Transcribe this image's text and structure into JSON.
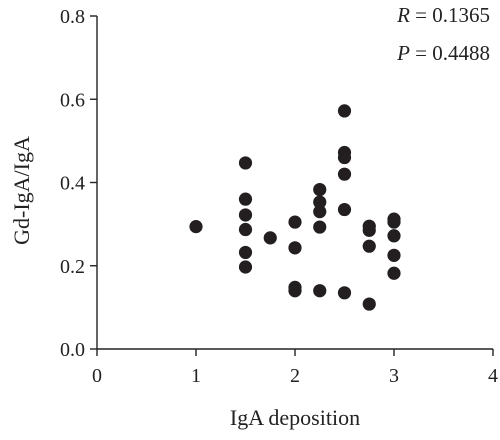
{
  "chart_data": {
    "type": "scatter",
    "title": "",
    "xlabel": "IgA deposition",
    "ylabel": "Gd-IgA/IgA",
    "xlim": [
      0,
      4
    ],
    "ylim": [
      0,
      0.8
    ],
    "xticks": [
      "0",
      "1",
      "2",
      "3",
      "4"
    ],
    "yticks": [
      "0.0",
      "0.2",
      "0.4",
      "0.6",
      "0.8"
    ],
    "grid": false,
    "legend": "none",
    "marker_color": "#231f20",
    "annotations": [
      {
        "var": "R",
        "text": " = 0.1365"
      },
      {
        "var": "P",
        "text": " = 0.4488"
      }
    ],
    "points": [
      {
        "x": 1.0,
        "y": 0.294
      },
      {
        "x": 1.5,
        "y": 0.447
      },
      {
        "x": 1.5,
        "y": 0.36
      },
      {
        "x": 1.5,
        "y": 0.322
      },
      {
        "x": 1.5,
        "y": 0.287
      },
      {
        "x": 1.5,
        "y": 0.232
      },
      {
        "x": 1.5,
        "y": 0.197
      },
      {
        "x": 1.75,
        "y": 0.267
      },
      {
        "x": 2.0,
        "y": 0.305
      },
      {
        "x": 2.0,
        "y": 0.243
      },
      {
        "x": 2.0,
        "y": 0.148
      },
      {
        "x": 2.0,
        "y": 0.14
      },
      {
        "x": 2.25,
        "y": 0.383
      },
      {
        "x": 2.25,
        "y": 0.353
      },
      {
        "x": 2.25,
        "y": 0.33
      },
      {
        "x": 2.25,
        "y": 0.293
      },
      {
        "x": 2.25,
        "y": 0.14
      },
      {
        "x": 2.5,
        "y": 0.572
      },
      {
        "x": 2.5,
        "y": 0.472
      },
      {
        "x": 2.5,
        "y": 0.46
      },
      {
        "x": 2.5,
        "y": 0.42
      },
      {
        "x": 2.5,
        "y": 0.335
      },
      {
        "x": 2.5,
        "y": 0.135
      },
      {
        "x": 2.75,
        "y": 0.295
      },
      {
        "x": 2.75,
        "y": 0.285
      },
      {
        "x": 2.75,
        "y": 0.247
      },
      {
        "x": 2.75,
        "y": 0.108
      },
      {
        "x": 3.0,
        "y": 0.312
      },
      {
        "x": 3.0,
        "y": 0.305
      },
      {
        "x": 3.0,
        "y": 0.272
      },
      {
        "x": 3.0,
        "y": 0.225
      },
      {
        "x": 3.0,
        "y": 0.182
      }
    ]
  }
}
